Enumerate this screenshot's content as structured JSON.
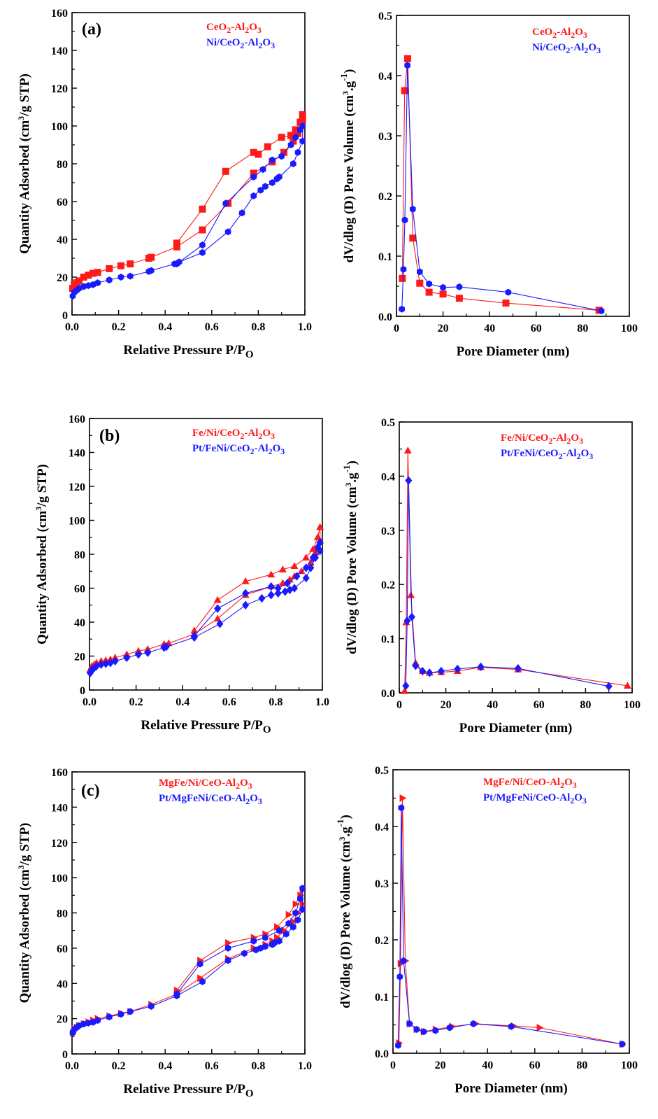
{
  "colors": {
    "series1": "#ff1a1a",
    "series2": "#1a1aff",
    "axis": "#000000"
  },
  "chart_data": [
    {
      "type": "line",
      "panel_label": "(a)",
      "xlabel": "Relative Pressure P/P",
      "xlabel_sub": "O",
      "ylabel": "Quantity Adsorbed (cm3/g STP)",
      "xlim": [
        0,
        1.0
      ],
      "ylim": [
        0,
        160
      ],
      "xticks": [
        "0.0",
        "0.2",
        "0.4",
        "0.6",
        "0.8",
        "1.0"
      ],
      "yticks": [
        "0",
        "20",
        "40",
        "60",
        "80",
        "100",
        "120",
        "140",
        "160"
      ],
      "series": [
        {
          "name": "CeO2-Al2O3",
          "marker": "square",
          "x": [
            0.003,
            0.01,
            0.02,
            0.03,
            0.05,
            0.07,
            0.09,
            0.11,
            0.16,
            0.21,
            0.25,
            0.33,
            0.34,
            0.45,
            0.56,
            0.67,
            0.78,
            0.86,
            0.91,
            0.95,
            0.97,
            0.99,
            0.99,
            0.98,
            0.96,
            0.94,
            0.9,
            0.84,
            0.8,
            0.78,
            0.66,
            0.56,
            0.45
          ],
          "y": [
            14,
            16,
            17,
            18,
            20,
            21,
            22,
            22.5,
            24.5,
            26,
            27,
            30,
            30.5,
            36,
            45,
            59,
            75,
            81,
            86,
            92,
            96,
            103,
            106,
            102,
            98,
            95,
            94,
            89,
            85,
            86,
            76,
            56,
            38
          ]
        },
        {
          "name": "Ni/CeO2-Al2O3",
          "marker": "hexagon",
          "x": [
            0.003,
            0.01,
            0.02,
            0.03,
            0.05,
            0.07,
            0.09,
            0.11,
            0.16,
            0.21,
            0.25,
            0.33,
            0.34,
            0.44,
            0.46,
            0.56,
            0.67,
            0.73,
            0.78,
            0.81,
            0.83,
            0.86,
            0.88,
            0.89,
            0.95,
            0.97,
            0.99,
            0.99,
            0.98,
            0.96,
            0.94,
            0.9,
            0.86,
            0.82,
            0.78,
            0.66,
            0.56,
            0.45
          ],
          "y": [
            10,
            12,
            13,
            14,
            15,
            15.5,
            16,
            17,
            18.5,
            20,
            20.5,
            23,
            23.5,
            27,
            28,
            33,
            44,
            54,
            63,
            66,
            68,
            70,
            72,
            73,
            80,
            86,
            92,
            100,
            98,
            94,
            90,
            84,
            82,
            77,
            73,
            59,
            37,
            27
          ]
        }
      ]
    },
    {
      "type": "line",
      "xlabel": "Pore Diameter (nm)",
      "ylabel": "dV/dlog (D) Pore Volume (cm3.g-1)",
      "xlim": [
        0,
        100
      ],
      "ylim": [
        0,
        0.5
      ],
      "xticks": [
        "0",
        "20",
        "40",
        "60",
        "80",
        "100"
      ],
      "yticks": [
        "0.0",
        "0.1",
        "0.2",
        "0.3",
        "0.4",
        "0.5"
      ],
      "series": [
        {
          "name": "CeO2-Al2O3",
          "marker": "square",
          "x": [
            2.5,
            3.5,
            4.8,
            7,
            10,
            14,
            20,
            27,
            47,
            87
          ],
          "y": [
            0.063,
            0.375,
            0.428,
            0.13,
            0.055,
            0.04,
            0.037,
            0.03,
            0.022,
            0.01
          ]
        },
        {
          "name": "Ni/CeO2-Al2O3",
          "marker": "hexagon",
          "x": [
            2.3,
            3,
            3.6,
            4.7,
            7,
            10,
            14,
            20,
            27,
            48,
            88
          ],
          "y": [
            0.012,
            0.078,
            0.16,
            0.417,
            0.178,
            0.074,
            0.054,
            0.048,
            0.049,
            0.04,
            0.009
          ]
        }
      ]
    },
    {
      "type": "line",
      "panel_label": "(b)",
      "xlabel": "Relative Pressure P/P",
      "xlabel_sub": "O",
      "ylabel": "Quantity Adsorbed (cm3/g STP)",
      "xlim": [
        0,
        1.0
      ],
      "ylim": [
        0,
        160
      ],
      "xticks": [
        "0.0",
        "0.2",
        "0.4",
        "0.6",
        "0.8",
        "1.0"
      ],
      "yticks": [
        "0",
        "20",
        "40",
        "60",
        "80",
        "100",
        "120",
        "140",
        "160"
      ],
      "series": [
        {
          "name": "Fe/Ni/CeO2-Al2O3",
          "marker": "triangle",
          "x": [
            0.003,
            0.01,
            0.02,
            0.03,
            0.05,
            0.07,
            0.09,
            0.11,
            0.16,
            0.21,
            0.25,
            0.32,
            0.34,
            0.45,
            0.55,
            0.67,
            0.78,
            0.83,
            0.86,
            0.88,
            0.91,
            0.95,
            0.97,
            0.99,
            0.99,
            0.98,
            0.96,
            0.93,
            0.88,
            0.83,
            0.78,
            0.67,
            0.55,
            0.45
          ],
          "y": [
            12,
            14,
            15,
            16,
            17,
            17.5,
            18,
            19,
            21,
            23,
            24,
            27,
            27.5,
            33,
            42,
            56,
            61,
            63,
            65,
            67,
            70,
            75,
            81,
            88,
            96,
            90,
            83,
            78,
            73,
            71,
            68,
            64,
            53,
            35
          ]
        },
        {
          "name": "Pt/FeNi/CeO2-Al2O3",
          "marker": "diamond",
          "x": [
            0.003,
            0.01,
            0.02,
            0.03,
            0.05,
            0.07,
            0.09,
            0.11,
            0.16,
            0.21,
            0.25,
            0.32,
            0.33,
            0.45,
            0.56,
            0.67,
            0.74,
            0.78,
            0.81,
            0.84,
            0.86,
            0.88,
            0.93,
            0.95,
            0.97,
            0.99,
            0.99,
            0.98,
            0.96,
            0.93,
            0.89,
            0.85,
            0.81,
            0.78,
            0.67,
            0.55,
            0.45
          ],
          "y": [
            10,
            12,
            13,
            14,
            15,
            15.5,
            16,
            17,
            19,
            21,
            22,
            25,
            25.5,
            31,
            39,
            50,
            54,
            56,
            57,
            58,
            59,
            60,
            66,
            72,
            78,
            82,
            87,
            84,
            78,
            72,
            67,
            63,
            60,
            61,
            57,
            48,
            32
          ]
        }
      ]
    },
    {
      "type": "line",
      "xlabel": "Pore Diameter (nm)",
      "ylabel": "dV/dlog (D) Pore Volume (cm3.g-1)",
      "xlim": [
        0,
        100
      ],
      "ylim": [
        0,
        0.5
      ],
      "xticks": [
        "0",
        "20",
        "40",
        "60",
        "80",
        "100"
      ],
      "yticks": [
        "0.0",
        "0.1",
        "0.2",
        "0.3",
        "0.4",
        "0.5"
      ],
      "series": [
        {
          "name": "Fe/Ni/CeO2-Al2O3",
          "marker": "triangle",
          "x": [
            2.3,
            3,
            3.7,
            5,
            7,
            10,
            13,
            18,
            25,
            35,
            51,
            98
          ],
          "y": [
            0.003,
            0.13,
            0.447,
            0.18,
            0.055,
            0.04,
            0.037,
            0.038,
            0.04,
            0.047,
            0.043,
            0.013
          ]
        },
        {
          "name": "Pt/FeNi/CeO2-Al2O3",
          "marker": "diamond",
          "x": [
            2.8,
            3.4,
            4,
            5.4,
            7,
            10,
            13,
            18,
            25,
            35,
            51,
            90
          ],
          "y": [
            0.013,
            0.133,
            0.392,
            0.14,
            0.05,
            0.04,
            0.037,
            0.04,
            0.044,
            0.048,
            0.045,
            0.012
          ]
        }
      ]
    },
    {
      "type": "line",
      "panel_label": "(c)",
      "xlabel": "Relative Pressure P/P",
      "xlabel_sub": "O",
      "ylabel": "Quantity Adsorbed (cm3/g STP)",
      "xlim": [
        0,
        1.0
      ],
      "ylim": [
        0,
        160
      ],
      "xticks": [
        "0.0",
        "0.2",
        "0.4",
        "0.6",
        "0.8",
        "1.0"
      ],
      "yticks": [
        "0",
        "20",
        "40",
        "60",
        "80",
        "100",
        "120",
        "140",
        "160"
      ],
      "series": [
        {
          "name": "MgFe/Ni/CeO-Al2O3",
          "marker": "triangle-right",
          "x": [
            0.003,
            0.01,
            0.02,
            0.03,
            0.05,
            0.07,
            0.09,
            0.11,
            0.16,
            0.21,
            0.25,
            0.34,
            0.45,
            0.55,
            0.67,
            0.78,
            0.83,
            0.86,
            0.88,
            0.91,
            0.95,
            0.97,
            0.99,
            0.99,
            0.98,
            0.96,
            0.93,
            0.88,
            0.83,
            0.78,
            0.67,
            0.55,
            0.45
          ],
          "y": [
            12,
            14,
            15,
            16,
            17,
            18,
            19,
            20,
            21.5,
            23,
            24,
            28,
            34,
            43,
            54,
            60,
            62,
            64,
            66,
            70,
            75,
            80,
            85,
            93,
            90,
            85,
            79,
            72,
            68,
            66,
            63,
            53,
            36
          ]
        },
        {
          "name": "Pt/MgFeNi/CeO-Al2O3",
          "marker": "hexagon",
          "x": [
            0.003,
            0.01,
            0.02,
            0.03,
            0.05,
            0.07,
            0.09,
            0.11,
            0.16,
            0.21,
            0.25,
            0.34,
            0.45,
            0.56,
            0.67,
            0.74,
            0.79,
            0.81,
            0.83,
            0.86,
            0.87,
            0.89,
            0.92,
            0.95,
            0.97,
            0.99,
            0.99,
            0.98,
            0.96,
            0.93,
            0.89,
            0.83,
            0.78,
            0.67,
            0.55,
            0.45
          ],
          "y": [
            12,
            14,
            15,
            16,
            17,
            17.5,
            18,
            19,
            21,
            22.5,
            24,
            27,
            33,
            41,
            53,
            57,
            59,
            60,
            61,
            62,
            63,
            64,
            68,
            72,
            76,
            82,
            94,
            88,
            80,
            74,
            70,
            66,
            64,
            60,
            51,
            34
          ]
        }
      ]
    },
    {
      "type": "line",
      "xlabel": "Pore Diameter (nm)",
      "ylabel": "dV/dlog (D) Pore Volume (cm3.g-1)",
      "xlim": [
        0,
        100
      ],
      "ylim": [
        0,
        0.5
      ],
      "xticks": [
        "0",
        "20",
        "40",
        "60",
        "80",
        "100"
      ],
      "yticks": [
        "0.0",
        "0.1",
        "0.2",
        "0.3",
        "0.4",
        "0.5"
      ],
      "series": [
        {
          "name": "MgFe/Ni/CeO-Al2O3",
          "marker": "triangle-right",
          "x": [
            2.5,
            3.2,
            4,
            5.2,
            7,
            10,
            13,
            18,
            25,
            35,
            51,
            62,
            97
          ],
          "y": [
            0.018,
            0.158,
            0.45,
            0.163,
            0.052,
            0.042,
            0.038,
            0.042,
            0.047,
            0.052,
            0.048,
            0.045,
            0.016
          ]
        },
        {
          "name": "Pt/MgFeNi/CeO-Al2O3",
          "marker": "hexagon",
          "x": [
            2.2,
            2.9,
            3.5,
            4.5,
            7,
            10,
            13,
            18,
            24,
            34,
            50,
            97
          ],
          "y": [
            0.014,
            0.135,
            0.433,
            0.163,
            0.052,
            0.042,
            0.038,
            0.04,
            0.045,
            0.052,
            0.047,
            0.016
          ]
        }
      ]
    }
  ]
}
